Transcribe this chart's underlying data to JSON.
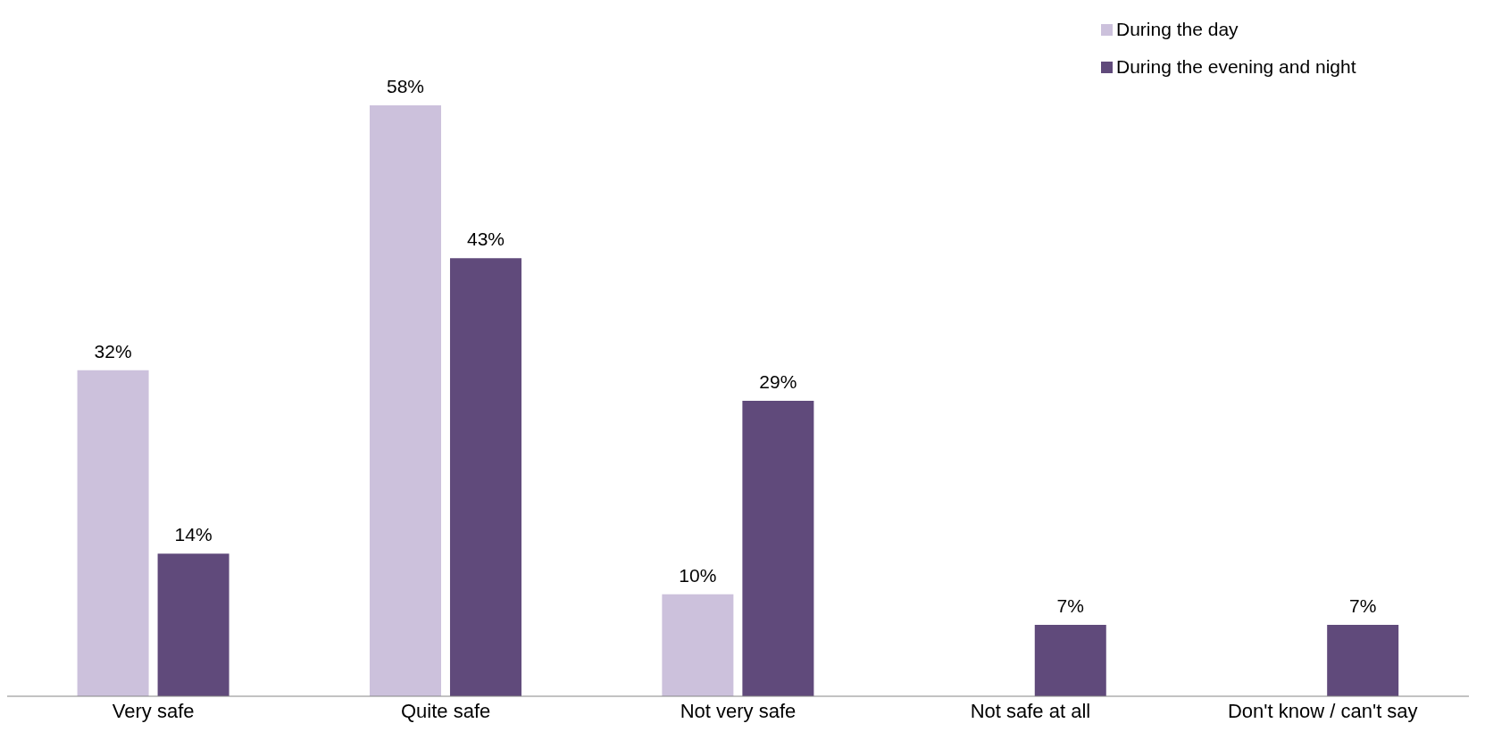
{
  "chart_data": {
    "type": "bar",
    "categories": [
      "Very safe",
      "Quite safe",
      "Not very safe",
      "Not safe at all",
      "Don't know / can't say"
    ],
    "series": [
      {
        "name": "During the day",
        "color": "#ccc1dc",
        "values": [
          32,
          58,
          10,
          0,
          0
        ],
        "value_labels": [
          "32%",
          "58%",
          "10%",
          null,
          null
        ]
      },
      {
        "name": "During the evening and night",
        "color": "#604a7b",
        "values": [
          14,
          43,
          29,
          7,
          7
        ],
        "value_labels": [
          "14%",
          "43%",
          "29%",
          "7%",
          "7%"
        ]
      }
    ],
    "legend": "top right"
  }
}
